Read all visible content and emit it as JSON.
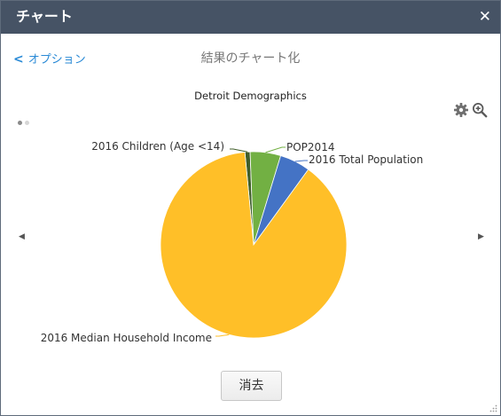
{
  "window": {
    "title": "チャート"
  },
  "nav": {
    "back_label": "オプション",
    "page_title": "結果のチャート化"
  },
  "buttons": {
    "clear_label": "消去"
  },
  "chart_data": {
    "type": "pie",
    "title": "Detroit Demographics",
    "slices": [
      {
        "label": "2016 Children (Age <14)",
        "value": 0.9,
        "color": "#3f5e2a"
      },
      {
        "label": "POP2014",
        "value": 5.3,
        "color": "#72b043"
      },
      {
        "label": "2016 Total Population",
        "value": 5.3,
        "color": "#4473c5"
      },
      {
        "label": "2016 Median Household Income",
        "value": 88.5,
        "color": "#ffbf28"
      }
    ]
  },
  "pager": {
    "pages": 2,
    "active": 1
  },
  "icons": {
    "close": "close-icon",
    "back": "chevron-left-icon",
    "settings": "gear-icon",
    "zoom": "zoom-in-icon",
    "prev": "caret-left-icon",
    "next": "caret-right-icon"
  },
  "colors": {
    "titlebar": "#465365",
    "link": "#2a8ad6"
  }
}
